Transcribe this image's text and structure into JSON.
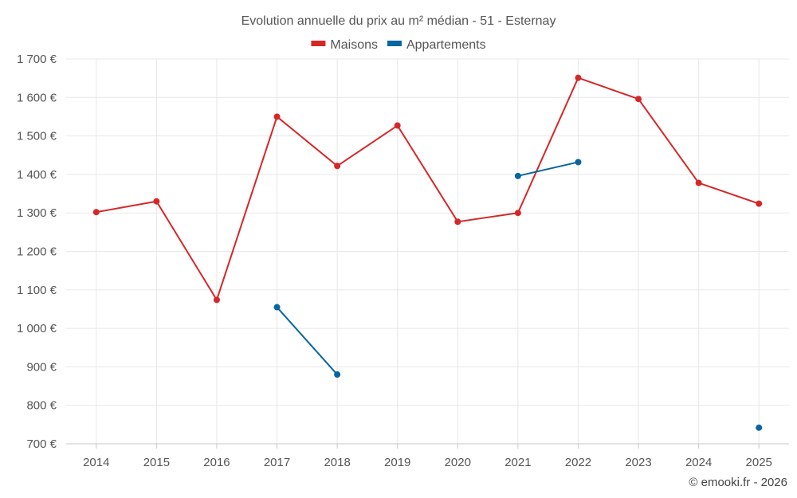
{
  "chart_data": {
    "type": "line",
    "title": "Evolution annuelle du prix au m² médian - 51 - Esternay",
    "xlabel": "",
    "ylabel": "",
    "x": [
      "2014",
      "2015",
      "2016",
      "2017",
      "2018",
      "2019",
      "2020",
      "2021",
      "2022",
      "2023",
      "2024",
      "2025"
    ],
    "ylim": [
      700,
      1700
    ],
    "yticks": [
      700,
      800,
      900,
      1000,
      1100,
      1200,
      1300,
      1400,
      1500,
      1600,
      1700
    ],
    "ytick_labels": [
      "700 €",
      "800 €",
      "900 €",
      "1 000 €",
      "1 100 €",
      "1 200 €",
      "1 300 €",
      "1 400 €",
      "1 500 €",
      "1 600 €",
      "1 700 €"
    ],
    "grid": true,
    "legend_position": "top-center",
    "series": [
      {
        "name": "Maisons",
        "color": "#d62728",
        "values": [
          1302,
          1330,
          1074,
          1550,
          1422,
          1527,
          1277,
          1300,
          1651,
          1596,
          1378,
          1324
        ]
      },
      {
        "name": "Appartements",
        "color": "#07659f",
        "values": [
          null,
          null,
          null,
          1055,
          880,
          null,
          null,
          1396,
          1432,
          null,
          null,
          742
        ]
      }
    ]
  },
  "credit": "© emooki.fr - 2026"
}
